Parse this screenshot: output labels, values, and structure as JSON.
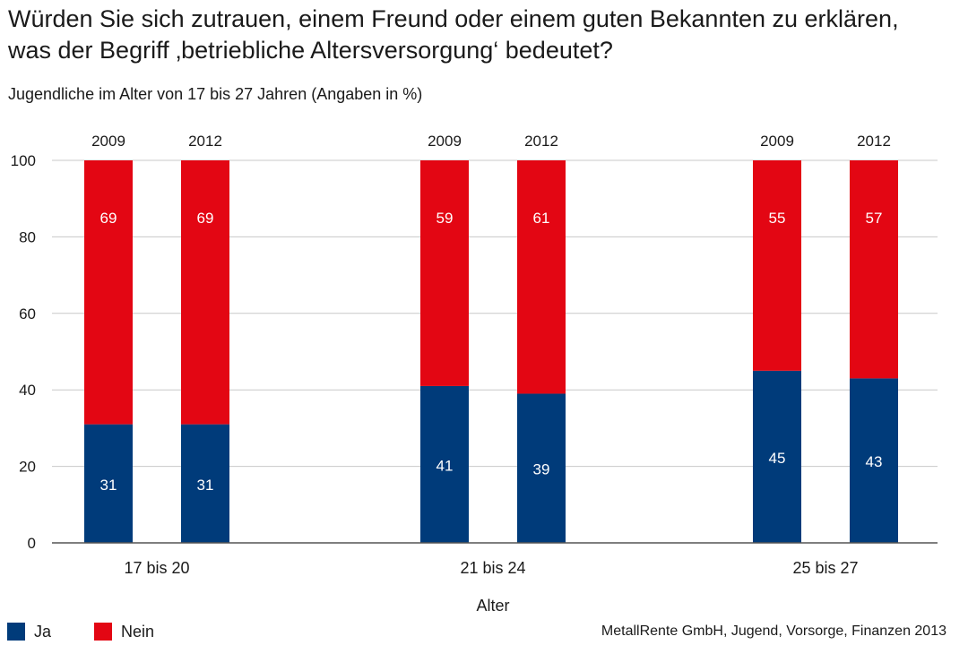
{
  "title_line1": "Würden Sie sich zutrauen, einem Freund oder einem guten Bekannten zu erklären,",
  "title_line2": "was der Begriff ‚betriebliche Altersversorgung‘ bedeutet?",
  "subtitle": "Jugendliche im Alter von 17 bis 27 Jahren (Angaben in %)",
  "source": "MetallRente GmbH, Jugend, Vorsorge, Finanzen 2013",
  "colors": {
    "ja": "#003b7a",
    "nein": "#e30613",
    "grid": "#c8c8c8",
    "axis": "#555555"
  },
  "chart_data": {
    "type": "bar",
    "stacked": true,
    "xlabel": "Alter",
    "ylabel": "",
    "ylim": [
      0,
      100
    ],
    "yticks": [
      0,
      20,
      40,
      60,
      80,
      100
    ],
    "grid": true,
    "legend_placement": "bottom-left",
    "groups": [
      {
        "label": "17 bis 20",
        "bars": [
          {
            "year": "2009",
            "ja": 31,
            "nein": 69
          },
          {
            "year": "2012",
            "ja": 31,
            "nein": 69
          }
        ]
      },
      {
        "label": "21 bis 24",
        "bars": [
          {
            "year": "2009",
            "ja": 41,
            "nein": 59
          },
          {
            "year": "2012",
            "ja": 39,
            "nein": 61
          }
        ]
      },
      {
        "label": "25 bis 27",
        "bars": [
          {
            "year": "2009",
            "ja": 45,
            "nein": 55
          },
          {
            "year": "2012",
            "ja": 43,
            "nein": 57
          }
        ]
      }
    ],
    "series": [
      {
        "key": "ja",
        "name": "Ja"
      },
      {
        "key": "nein",
        "name": "Nein"
      }
    ]
  }
}
